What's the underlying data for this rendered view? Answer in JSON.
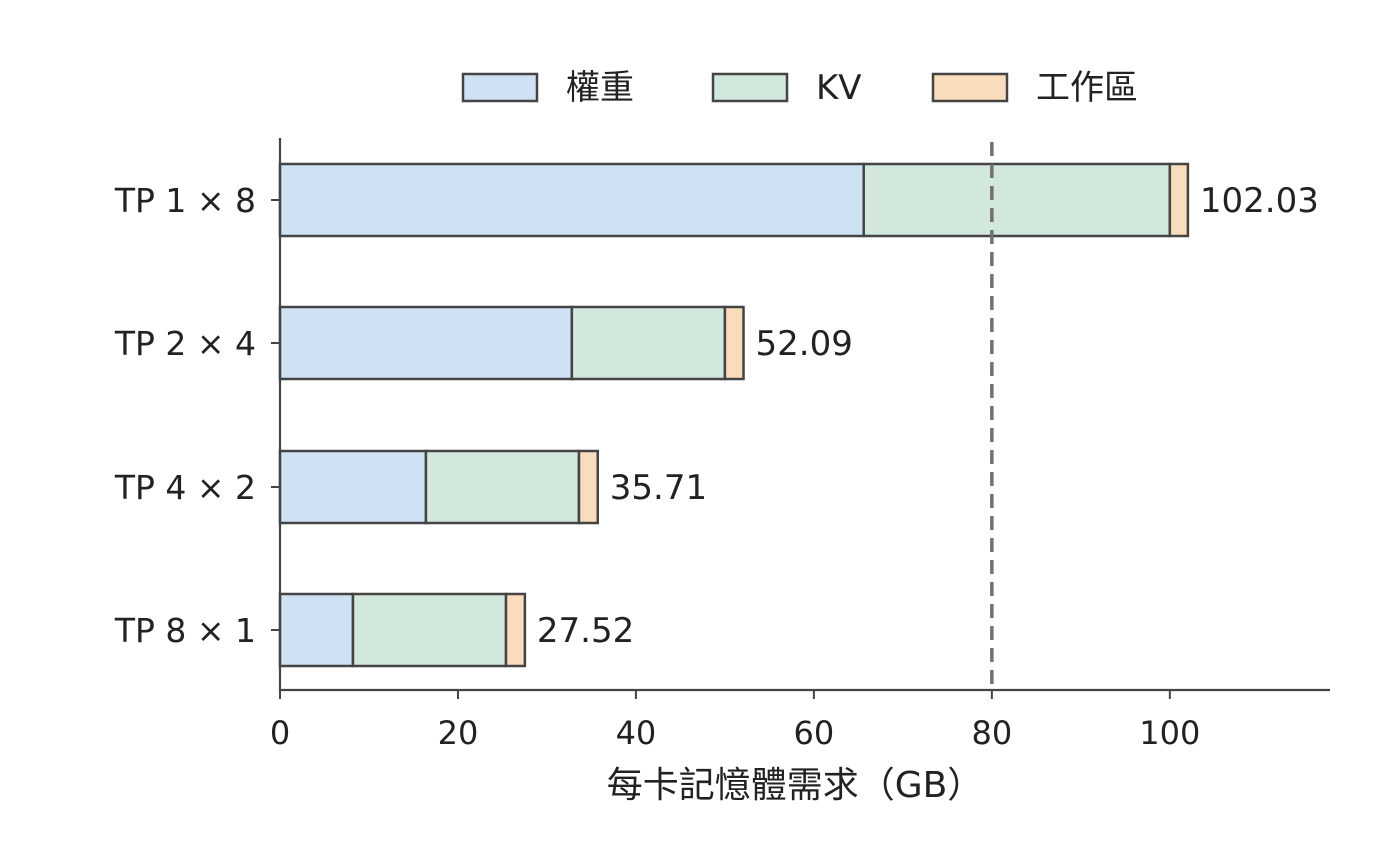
{
  "chart_data": {
    "type": "bar",
    "orientation": "horizontal",
    "stacked": true,
    "categories": [
      "TP 1 × 8",
      "TP 2 × 4",
      "TP 4 × 2",
      "TP 8 × 1"
    ],
    "series": [
      {
        "name": "權重",
        "color": "#cfe2f3",
        "values": [
          65.6,
          32.8,
          16.4,
          8.2
        ]
      },
      {
        "name": "KV",
        "color": "#d3e8dc",
        "values": [
          34.4,
          17.2,
          17.2,
          17.2
        ]
      },
      {
        "name": "工作區",
        "color": "#f9dcbc",
        "values": [
          2.03,
          2.09,
          2.11,
          2.12
        ]
      }
    ],
    "totals": [
      "102.03",
      "52.09",
      "35.71",
      "27.52"
    ],
    "xlabel": "每卡記憶體需求（GB）",
    "ylabel": "",
    "xlim": [
      0,
      118
    ],
    "xticks": [
      0,
      20,
      40,
      60,
      80,
      100
    ],
    "reference_line": {
      "x": 80,
      "style": "dashed",
      "color": "#707070"
    },
    "legend": "top-center",
    "grid": false
  }
}
